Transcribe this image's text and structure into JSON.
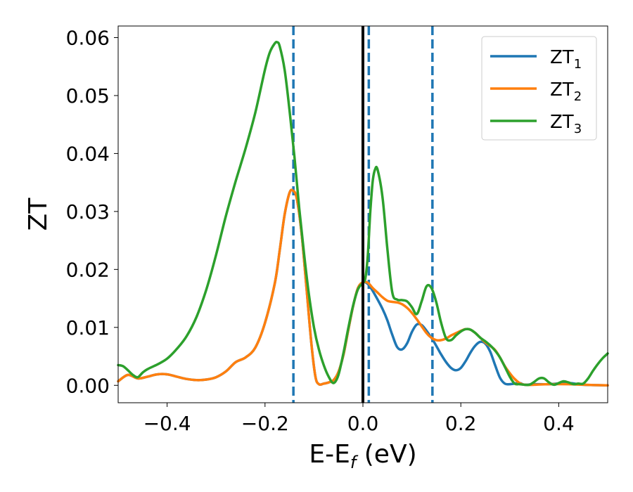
{
  "chart_data": {
    "type": "line",
    "xlabel": {
      "main": "E-E",
      "sub": "f",
      "suffix": " (eV)"
    },
    "ylabel": "ZT",
    "xlim": [
      -0.5,
      0.5
    ],
    "ylim": [
      -0.003,
      0.062
    ],
    "xticks": [
      -0.4,
      -0.2,
      0.0,
      0.2,
      0.4
    ],
    "xtick_labels": [
      "−0.4",
      "−0.2",
      "0.0",
      "0.2",
      "0.4"
    ],
    "yticks": [
      0.0,
      0.01,
      0.02,
      0.03,
      0.04,
      0.05,
      0.06
    ],
    "ytick_labels": [
      "0.00",
      "0.01",
      "0.02",
      "0.03",
      "0.04",
      "0.05",
      "0.06"
    ],
    "grid": false,
    "legend_position": "top-right",
    "vertical_lines": [
      {
        "x": 0.0,
        "style": "solid",
        "color": "#000000"
      },
      {
        "x": -0.142,
        "style": "dashed",
        "color": "#1f77b4"
      },
      {
        "x": 0.012,
        "style": "dashed",
        "color": "#1f77b4"
      },
      {
        "x": 0.142,
        "style": "dashed",
        "color": "#1f77b4"
      }
    ],
    "series": [
      {
        "name": "ZT",
        "sub": "1",
        "color": "#1f77b4",
        "points": [
          [
            -0.5,
            0.0007
          ],
          [
            -0.48,
            0.0018
          ],
          [
            -0.46,
            0.0012
          ],
          [
            -0.44,
            0.0015
          ],
          [
            -0.42,
            0.0019
          ],
          [
            -0.4,
            0.0019
          ],
          [
            -0.38,
            0.0015
          ],
          [
            -0.36,
            0.0011
          ],
          [
            -0.34,
            0.0009
          ],
          [
            -0.32,
            0.001
          ],
          [
            -0.3,
            0.0014
          ],
          [
            -0.28,
            0.0024
          ],
          [
            -0.26,
            0.004
          ],
          [
            -0.24,
            0.0048
          ],
          [
            -0.22,
            0.0065
          ],
          [
            -0.2,
            0.0108
          ],
          [
            -0.18,
            0.0176
          ],
          [
            -0.17,
            0.0233
          ],
          [
            -0.16,
            0.0294
          ],
          [
            -0.15,
            0.0332
          ],
          [
            -0.143,
            0.0336
          ],
          [
            -0.135,
            0.0322
          ],
          [
            -0.125,
            0.026
          ],
          [
            -0.115,
            0.0165
          ],
          [
            -0.105,
            0.007
          ],
          [
            -0.097,
            0.0015
          ],
          [
            -0.09,
            0.0002
          ],
          [
            -0.08,
            0.0003
          ],
          [
            -0.07,
            0.0005
          ],
          [
            -0.06,
            0.0009
          ],
          [
            -0.05,
            0.0023
          ],
          [
            -0.04,
            0.0052
          ],
          [
            -0.03,
            0.0095
          ],
          [
            -0.02,
            0.0137
          ],
          [
            -0.01,
            0.0168
          ],
          [
            0.0,
            0.0178
          ],
          [
            0.01,
            0.0175
          ],
          [
            0.02,
            0.0163
          ],
          [
            0.03,
            0.0148
          ],
          [
            0.04,
            0.0132
          ],
          [
            0.05,
            0.0112
          ],
          [
            0.06,
            0.0087
          ],
          [
            0.07,
            0.0066
          ],
          [
            0.08,
            0.0062
          ],
          [
            0.09,
            0.0072
          ],
          [
            0.1,
            0.0092
          ],
          [
            0.11,
            0.0105
          ],
          [
            0.12,
            0.0104
          ],
          [
            0.13,
            0.0094
          ],
          [
            0.14,
            0.0082
          ],
          [
            0.15,
            0.0068
          ],
          [
            0.16,
            0.0053
          ],
          [
            0.17,
            0.004
          ],
          [
            0.18,
            0.003
          ],
          [
            0.19,
            0.0026
          ],
          [
            0.2,
            0.003
          ],
          [
            0.21,
            0.0042
          ],
          [
            0.22,
            0.0057
          ],
          [
            0.23,
            0.0069
          ],
          [
            0.24,
            0.0075
          ],
          [
            0.25,
            0.0072
          ],
          [
            0.26,
            0.0058
          ],
          [
            0.27,
            0.0035
          ],
          [
            0.28,
            0.0013
          ],
          [
            0.29,
            0.0003
          ],
          [
            0.3,
            0.0002
          ],
          [
            0.32,
            0.0004
          ],
          [
            0.33,
            0.0001
          ],
          [
            0.35,
            0.0002
          ],
          [
            0.38,
            0.0002
          ],
          [
            0.42,
            0.0004
          ],
          [
            0.45,
            0.0001
          ],
          [
            0.5,
            0.0
          ]
        ]
      },
      {
        "name": "ZT",
        "sub": "2",
        "color": "#ff7f0e",
        "points": [
          [
            -0.5,
            0.0007
          ],
          [
            -0.48,
            0.0018
          ],
          [
            -0.46,
            0.0012
          ],
          [
            -0.44,
            0.0015
          ],
          [
            -0.42,
            0.0019
          ],
          [
            -0.4,
            0.0019
          ],
          [
            -0.38,
            0.0015
          ],
          [
            -0.36,
            0.0011
          ],
          [
            -0.34,
            0.0009
          ],
          [
            -0.32,
            0.001
          ],
          [
            -0.3,
            0.0014
          ],
          [
            -0.28,
            0.0024
          ],
          [
            -0.26,
            0.004
          ],
          [
            -0.24,
            0.0048
          ],
          [
            -0.22,
            0.0065
          ],
          [
            -0.2,
            0.0108
          ],
          [
            -0.18,
            0.0176
          ],
          [
            -0.17,
            0.0233
          ],
          [
            -0.16,
            0.0294
          ],
          [
            -0.15,
            0.0332
          ],
          [
            -0.143,
            0.0336
          ],
          [
            -0.135,
            0.0322
          ],
          [
            -0.125,
            0.026
          ],
          [
            -0.115,
            0.0165
          ],
          [
            -0.105,
            0.007
          ],
          [
            -0.097,
            0.0015
          ],
          [
            -0.09,
            0.0002
          ],
          [
            -0.08,
            0.0003
          ],
          [
            -0.07,
            0.0005
          ],
          [
            -0.06,
            0.0009
          ],
          [
            -0.05,
            0.0023
          ],
          [
            -0.04,
            0.0052
          ],
          [
            -0.03,
            0.0095
          ],
          [
            -0.02,
            0.0137
          ],
          [
            -0.01,
            0.0168
          ],
          [
            0.0,
            0.0178
          ],
          [
            0.01,
            0.0177
          ],
          [
            0.02,
            0.0168
          ],
          [
            0.03,
            0.016
          ],
          [
            0.04,
            0.0152
          ],
          [
            0.05,
            0.0146
          ],
          [
            0.06,
            0.0144
          ],
          [
            0.07,
            0.0143
          ],
          [
            0.08,
            0.014
          ],
          [
            0.09,
            0.0134
          ],
          [
            0.1,
            0.0125
          ],
          [
            0.11,
            0.0114
          ],
          [
            0.12,
            0.0102
          ],
          [
            0.13,
            0.009
          ],
          [
            0.14,
            0.0082
          ],
          [
            0.15,
            0.0078
          ],
          [
            0.16,
            0.0078
          ],
          [
            0.17,
            0.0081
          ],
          [
            0.18,
            0.0086
          ],
          [
            0.19,
            0.009
          ],
          [
            0.2,
            0.0094
          ],
          [
            0.21,
            0.0097
          ],
          [
            0.22,
            0.0096
          ],
          [
            0.23,
            0.009
          ],
          [
            0.24,
            0.0082
          ],
          [
            0.25,
            0.0074
          ],
          [
            0.26,
            0.0068
          ],
          [
            0.27,
            0.0061
          ],
          [
            0.28,
            0.0048
          ],
          [
            0.29,
            0.0033
          ],
          [
            0.3,
            0.0021
          ],
          [
            0.31,
            0.0011
          ],
          [
            0.32,
            0.0004
          ],
          [
            0.33,
            0.0001
          ],
          [
            0.35,
            0.0001
          ],
          [
            0.38,
            0.0002
          ],
          [
            0.42,
            0.0002
          ],
          [
            0.45,
            0.0001
          ],
          [
            0.5,
            0.0
          ]
        ]
      },
      {
        "name": "ZT",
        "sub": "3",
        "color": "#2ca02c",
        "points": [
          [
            -0.5,
            0.0035
          ],
          [
            -0.49,
            0.0033
          ],
          [
            -0.48,
            0.0026
          ],
          [
            -0.47,
            0.0018
          ],
          [
            -0.46,
            0.0014
          ],
          [
            -0.45,
            0.0022
          ],
          [
            -0.44,
            0.0028
          ],
          [
            -0.42,
            0.0036
          ],
          [
            -0.4,
            0.0046
          ],
          [
            -0.38,
            0.0063
          ],
          [
            -0.36,
            0.0085
          ],
          [
            -0.34,
            0.0118
          ],
          [
            -0.32,
            0.0165
          ],
          [
            -0.3,
            0.0225
          ],
          [
            -0.28,
            0.0292
          ],
          [
            -0.26,
            0.0352
          ],
          [
            -0.24,
            0.0408
          ],
          [
            -0.22,
            0.047
          ],
          [
            -0.2,
            0.0545
          ],
          [
            -0.19,
            0.0575
          ],
          [
            -0.18,
            0.059
          ],
          [
            -0.175,
            0.0592
          ],
          [
            -0.17,
            0.0585
          ],
          [
            -0.16,
            0.0545
          ],
          [
            -0.15,
            0.0475
          ],
          [
            -0.14,
            0.0395
          ],
          [
            -0.13,
            0.0305
          ],
          [
            -0.12,
            0.0225
          ],
          [
            -0.11,
            0.0155
          ],
          [
            -0.1,
            0.01
          ],
          [
            -0.09,
            0.0062
          ],
          [
            -0.08,
            0.0035
          ],
          [
            -0.07,
            0.0015
          ],
          [
            -0.06,
            0.0004
          ],
          [
            -0.05,
            0.0018
          ],
          [
            -0.04,
            0.0055
          ],
          [
            -0.03,
            0.0098
          ],
          [
            -0.02,
            0.0138
          ],
          [
            -0.01,
            0.0166
          ],
          [
            0.0,
            0.0177
          ],
          [
            0.005,
            0.0185
          ],
          [
            0.01,
            0.0225
          ],
          [
            0.015,
            0.0298
          ],
          [
            0.02,
            0.0352
          ],
          [
            0.025,
            0.0373
          ],
          [
            0.03,
            0.0372
          ],
          [
            0.04,
            0.0325
          ],
          [
            0.05,
            0.0235
          ],
          [
            0.06,
            0.016
          ],
          [
            0.07,
            0.0148
          ],
          [
            0.08,
            0.0147
          ],
          [
            0.09,
            0.0145
          ],
          [
            0.1,
            0.0135
          ],
          [
            0.11,
            0.0123
          ],
          [
            0.12,
            0.0145
          ],
          [
            0.13,
            0.0171
          ],
          [
            0.14,
            0.0168
          ],
          [
            0.15,
            0.0143
          ],
          [
            0.16,
            0.0107
          ],
          [
            0.17,
            0.0081
          ],
          [
            0.18,
            0.0078
          ],
          [
            0.19,
            0.0086
          ],
          [
            0.2,
            0.0093
          ],
          [
            0.21,
            0.0097
          ],
          [
            0.22,
            0.0096
          ],
          [
            0.23,
            0.009
          ],
          [
            0.24,
            0.0082
          ],
          [
            0.25,
            0.0076
          ],
          [
            0.26,
            0.0069
          ],
          [
            0.27,
            0.006
          ],
          [
            0.28,
            0.0048
          ],
          [
            0.29,
            0.0032
          ],
          [
            0.3,
            0.0015
          ],
          [
            0.31,
            0.0003
          ],
          [
            0.32,
            0.0002
          ],
          [
            0.33,
            0.0001
          ],
          [
            0.34,
            0.0001
          ],
          [
            0.35,
            0.0006
          ],
          [
            0.36,
            0.0012
          ],
          [
            0.37,
            0.0012
          ],
          [
            0.38,
            0.0005
          ],
          [
            0.39,
            0.0001
          ],
          [
            0.4,
            0.0004
          ],
          [
            0.41,
            0.0007
          ],
          [
            0.42,
            0.0005
          ],
          [
            0.43,
            0.0002
          ],
          [
            0.44,
            0.0003
          ],
          [
            0.45,
            0.0003
          ],
          [
            0.46,
            0.0012
          ],
          [
            0.47,
            0.0025
          ],
          [
            0.48,
            0.0037
          ],
          [
            0.49,
            0.0047
          ],
          [
            0.5,
            0.0055
          ]
        ]
      }
    ]
  }
}
